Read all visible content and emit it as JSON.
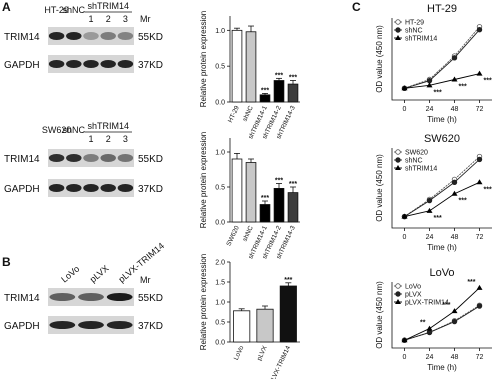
{
  "panels": [
    "A",
    "B",
    "C"
  ],
  "blots": [
    {
      "lanes": [
        "HT-29",
        "shNC",
        "1",
        "2",
        "3"
      ],
      "group": "shTRIM14",
      "mr_header": "Mr",
      "rows": [
        {
          "name": "TRIM14",
          "mr": "55KD"
        },
        {
          "name": "GAPDH",
          "mr": "37KD"
        }
      ]
    },
    {
      "lanes": [
        "SW620",
        "shNC",
        "1",
        "2",
        "3"
      ],
      "group": "shTRIM14",
      "rows": [
        {
          "name": "TRIM14",
          "mr": "55KD"
        },
        {
          "name": "GAPDH",
          "mr": "37KD"
        }
      ]
    },
    {
      "lanes": [
        "LoVo",
        "pLVX",
        "pLVX-TRIM14"
      ],
      "mr_header": "Mr",
      "rows": [
        {
          "name": "TRIM14",
          "mr": "55KD"
        },
        {
          "name": "GAPDH",
          "mr": "37KD"
        }
      ]
    }
  ],
  "chart_data": [
    {
      "type": "bar",
      "y_label": "Relative protein expression",
      "categories": [
        "HT-29",
        "shNC",
        "shTRIM14-1",
        "shTRIM14-2",
        "shTRIM14-3"
      ],
      "values": [
        1.0,
        0.98,
        0.1,
        0.3,
        0.25
      ],
      "errors": [
        0.03,
        0.08,
        0.02,
        0.03,
        0.05
      ],
      "significance": [
        null,
        null,
        "***",
        "***",
        "***"
      ],
      "colors": [
        "#ffffff",
        "#c8c8c8",
        "#000000",
        "#000000",
        "#3c3c3c"
      ],
      "ylim": [
        0,
        1.2
      ],
      "yticks": [
        {
          "value": 0,
          "label": "0.0"
        },
        {
          "value": 0.5,
          "label": "0.5"
        },
        {
          "value": 1,
          "label": "1.0"
        }
      ]
    },
    {
      "type": "bar",
      "y_label": "Relative protein expression",
      "categories": [
        "SW620",
        "shNC",
        "shTRIM14-1",
        "shTRIM14-2",
        "shTRIM14-3"
      ],
      "values": [
        0.9,
        0.85,
        0.25,
        0.48,
        0.42
      ],
      "errors": [
        0.08,
        0.05,
        0.05,
        0.07,
        0.08
      ],
      "significance": [
        null,
        null,
        "***",
        "***",
        "***"
      ],
      "colors": [
        "#ffffff",
        "#c8c8c8",
        "#000000",
        "#000000",
        "#3c3c3c"
      ],
      "ylim": [
        0,
        1.2
      ],
      "yticks": [
        {
          "value": 0,
          "label": "0.0"
        },
        {
          "value": 0.5,
          "label": "0.5"
        },
        {
          "value": 1,
          "label": "1.0"
        }
      ]
    },
    {
      "type": "bar",
      "y_label": "Relative protein expression",
      "categories": [
        "LoVo",
        "pLVX",
        "pLVX-TRIM14"
      ],
      "values": [
        0.78,
        0.82,
        1.4
      ],
      "errors": [
        0.05,
        0.08,
        0.08
      ],
      "significance": [
        null,
        null,
        "***"
      ],
      "colors": [
        "#ffffff",
        "#c8c8c8",
        "#111111"
      ],
      "ylim": [
        0,
        2.0
      ],
      "yticks": [
        {
          "value": 0,
          "label": "0.0"
        },
        {
          "value": 0.5,
          "label": "0.5"
        },
        {
          "value": 1,
          "label": "1.0"
        },
        {
          "value": 1.5,
          "label": "1.5"
        },
        {
          "value": 2,
          "label": "2.0"
        }
      ]
    },
    {
      "type": "line",
      "title": "HT-29",
      "x_label": "Time (h)",
      "y_label": "OD value (450 nm)",
      "x": [
        0,
        24,
        48,
        72
      ],
      "xlim": [
        -12,
        84
      ],
      "xticks": [
        0,
        24,
        48,
        72
      ],
      "ylim": [
        0,
        1.4
      ],
      "series": [
        {
          "name": "HT-29",
          "color": "#555555",
          "values": [
            0.2,
            0.35,
            0.75,
            1.25
          ]
        },
        {
          "name": "shNC",
          "color": "#222222",
          "values": [
            0.2,
            0.33,
            0.72,
            1.2
          ]
        },
        {
          "name": "shTRIM14",
          "color": "#000000",
          "values": [
            0.2,
            0.25,
            0.35,
            0.45
          ],
          "significance": [
            null,
            "***",
            "***",
            "***"
          ]
        }
      ]
    },
    {
      "type": "line",
      "title": "SW620",
      "x_label": "Time (h)",
      "y_label": "OD value (450 nm)",
      "x": [
        0,
        24,
        48,
        72
      ],
      "xlim": [
        -12,
        84
      ],
      "xticks": [
        0,
        24,
        48,
        72
      ],
      "ylim": [
        0,
        1.4
      ],
      "series": [
        {
          "name": "SW620",
          "color": "#555555",
          "values": [
            0.2,
            0.5,
            0.85,
            1.25
          ]
        },
        {
          "name": "shNC",
          "color": "#222222",
          "values": [
            0.2,
            0.48,
            0.8,
            1.2
          ]
        },
        {
          "name": "shTRIM14",
          "color": "#000000",
          "values": [
            0.2,
            0.3,
            0.6,
            0.8
          ],
          "significance": [
            null,
            "***",
            "***",
            "***"
          ]
        }
      ]
    },
    {
      "type": "line",
      "title": "LoVo",
      "x_label": "Time (h)",
      "y_label": "OD value (450 nm)",
      "x": [
        0,
        24,
        48,
        72
      ],
      "xlim": [
        -12,
        84
      ],
      "xticks": [
        0,
        24,
        48,
        72
      ],
      "ylim": [
        0,
        1.7
      ],
      "series": [
        {
          "name": "LoVo",
          "color": "#555555",
          "values": [
            0.2,
            0.4,
            0.7,
            1.1
          ]
        },
        {
          "name": "pLVX",
          "color": "#222222",
          "values": [
            0.2,
            0.4,
            0.68,
            1.08
          ]
        },
        {
          "name": "pLVX-TRIM14",
          "color": "#000000",
          "values": [
            0.2,
            0.5,
            0.95,
            1.55
          ],
          "significance": [
            null,
            "**",
            "***",
            "***"
          ]
        }
      ]
    }
  ]
}
